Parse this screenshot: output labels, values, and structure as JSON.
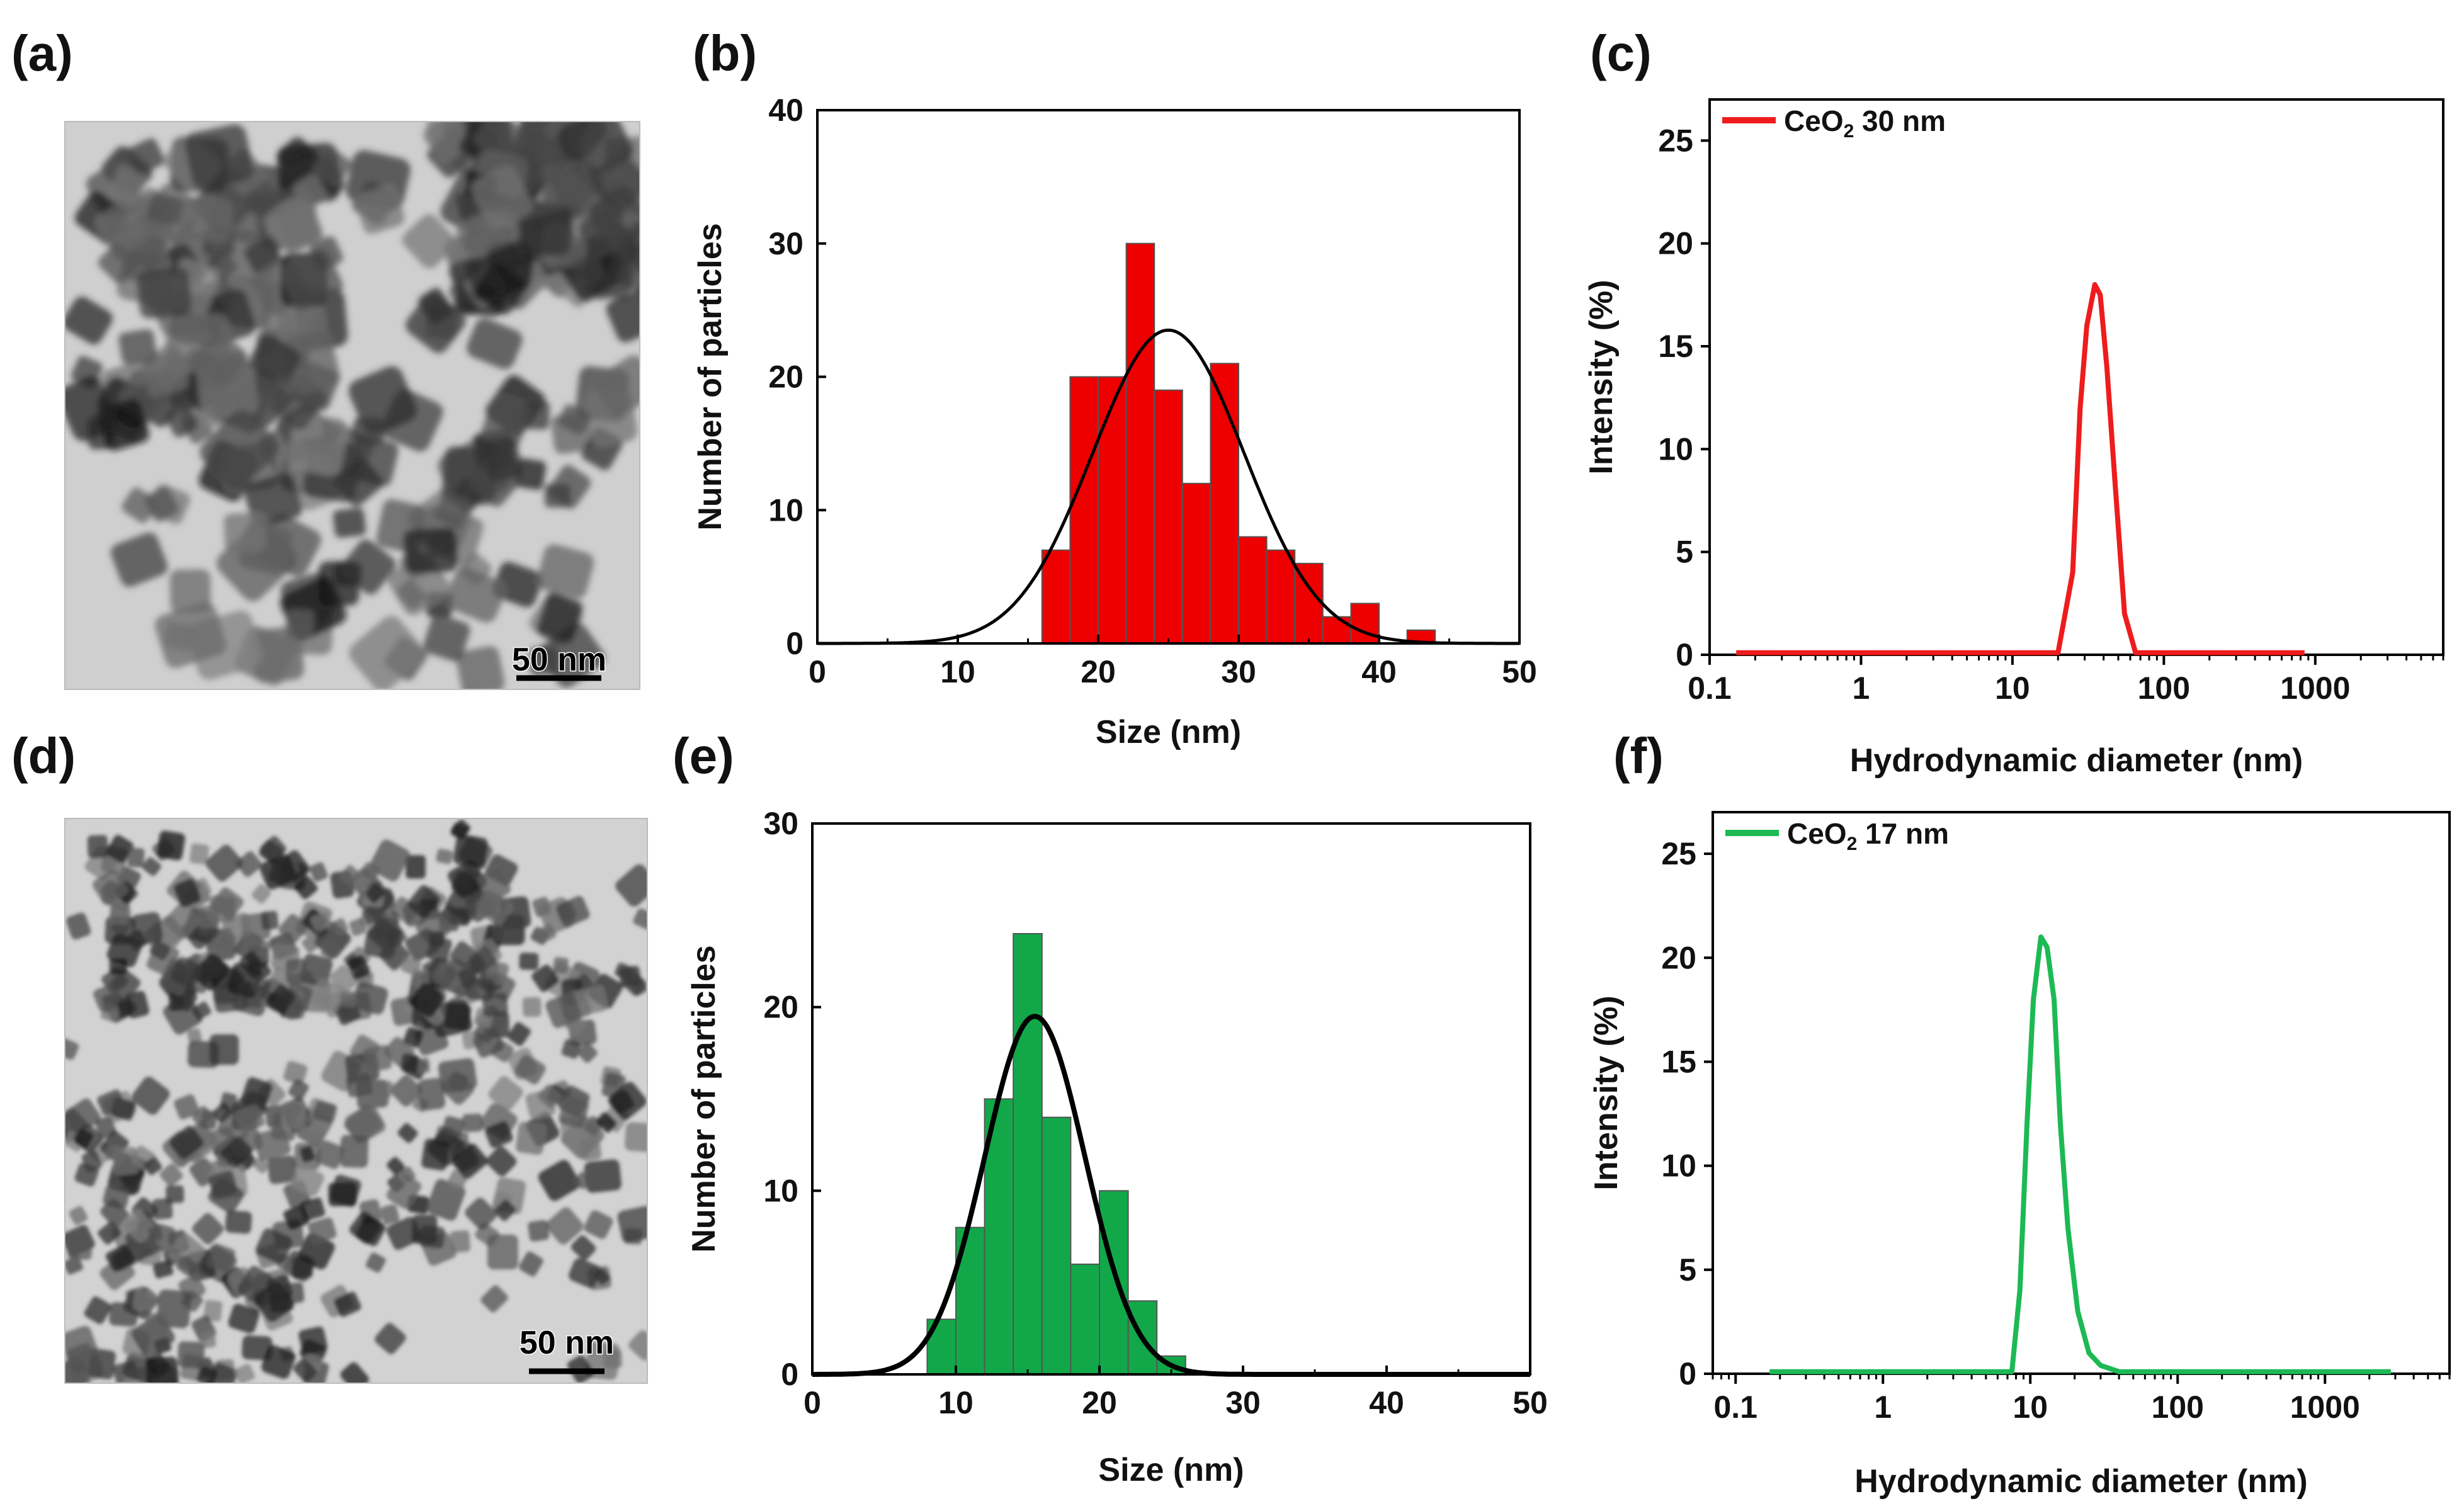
{
  "panel_labels": {
    "a": "(a)",
    "b": "(b)",
    "c": "(c)",
    "d": "(d)",
    "e": "(e)",
    "f": "(f)"
  },
  "tem_images": [
    {
      "panel": "(a)",
      "scale_bar": "50 nm"
    },
    {
      "panel": "(d)",
      "scale_bar": "50 nm"
    }
  ],
  "colors": {
    "red": "#ee0000",
    "green": "#12a84a",
    "fit": "#000000",
    "red_line": "#ee1c1c",
    "green_line": "#1db954"
  },
  "chart_data": [
    {
      "panel": "(b)",
      "type": "bar",
      "title": "",
      "xlabel": "Size (nm)",
      "ylabel": "Number of particles",
      "xlim": [
        0,
        50
      ],
      "ylim": [
        0,
        40
      ],
      "xticks": [
        "0",
        "10",
        "20",
        "30",
        "40",
        "50"
      ],
      "yticks": [
        "0",
        "10",
        "20",
        "30",
        "40"
      ],
      "bin_width": 2,
      "bin_starts": [
        16,
        18,
        20,
        22,
        24,
        26,
        28,
        30,
        32,
        34,
        36,
        38,
        40,
        42
      ],
      "values": [
        7,
        20,
        20,
        30,
        19,
        12,
        21,
        8,
        7,
        6,
        2,
        3,
        0,
        1
      ],
      "fit": {
        "type": "gaussian",
        "mean": 25,
        "sigma": 5.4,
        "peak": 23.5
      }
    },
    {
      "panel": "(c)",
      "type": "line",
      "title": "",
      "xlabel": "Hydrodynamic  diameter (nm)",
      "ylabel": "Intensity  (%)",
      "xscale": "log",
      "xlim": [
        0.1,
        7000
      ],
      "ylim": [
        0,
        27
      ],
      "xticks": [
        "0.1",
        "1",
        "10",
        "100",
        "1000"
      ],
      "yticks": [
        "0",
        "5",
        "10",
        "15",
        "20",
        "25"
      ],
      "legend": {
        "label": "CeO",
        "subscript": "2",
        "suffix": " 30 nm",
        "placement": "top-left"
      },
      "series": [
        {
          "name": "CeO2 30 nm",
          "x": [
            0.15,
            20,
            25,
            28,
            31,
            35,
            38,
            42,
            48,
            55,
            65,
            850
          ],
          "y": [
            0.1,
            0.1,
            4,
            12,
            16,
            18,
            17.5,
            14,
            8,
            2,
            0.1,
            0.1
          ]
        }
      ]
    },
    {
      "panel": "(e)",
      "type": "bar",
      "title": "",
      "xlabel": "Size (nm)",
      "ylabel": "Number of particles",
      "xlim": [
        0,
        50
      ],
      "ylim": [
        0,
        30
      ],
      "xticks": [
        "0",
        "10",
        "20",
        "30",
        "40",
        "50"
      ],
      "yticks": [
        "0",
        "10",
        "20",
        "30"
      ],
      "bin_width": 2,
      "bin_starts": [
        8,
        10,
        12,
        14,
        16,
        18,
        20,
        22,
        24
      ],
      "values": [
        3,
        8,
        15,
        24,
        14,
        6,
        10,
        4,
        1
      ],
      "fit": {
        "type": "gaussian",
        "mean": 15.5,
        "sigma": 3.5,
        "peak": 19.5
      }
    },
    {
      "panel": "(f)",
      "type": "line",
      "title": "",
      "xlabel": "Hydrodynamic  diameter (nm)",
      "ylabel": "Intensity  (%)",
      "xscale": "log",
      "xlim": [
        0.07,
        7000
      ],
      "ylim": [
        0,
        27
      ],
      "xticks": [
        "0.1",
        "1",
        "10",
        "100",
        "1000"
      ],
      "yticks": [
        "0",
        "5",
        "10",
        "15",
        "20",
        "25"
      ],
      "legend": {
        "label": "CeO",
        "subscript": "2",
        "suffix": " 17 nm",
        "placement": "top-left"
      },
      "series": [
        {
          "name": "CeO2 17 nm",
          "x": [
            0.17,
            7.5,
            8.5,
            9.5,
            10.5,
            11.8,
            13,
            14.5,
            16,
            18,
            21,
            25,
            30,
            40,
            2800
          ],
          "y": [
            0.1,
            0.1,
            4,
            12,
            18,
            21,
            20.5,
            18,
            12,
            7,
            3,
            1,
            0.4,
            0.1,
            0.1
          ]
        }
      ]
    }
  ]
}
